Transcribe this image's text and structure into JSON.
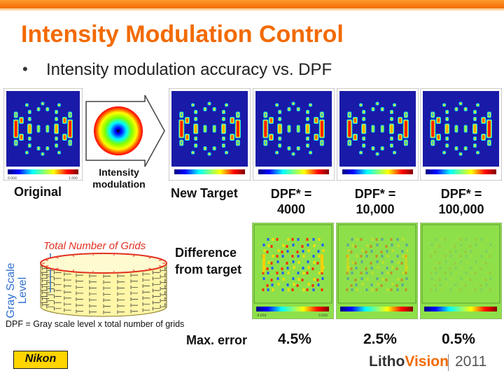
{
  "title": "Intensity Modulation Control",
  "bullet": "Intensity modulation accuracy vs. DPF",
  "labels": {
    "original": "Original",
    "intensity_modulation_line1": "Intensity",
    "intensity_modulation_line2": "modulation",
    "new_target": "New Target",
    "dpf_4000_line1": "DPF* =",
    "dpf_4000_line2": "4000",
    "dpf_10000_line1": "DPF* =",
    "dpf_10000_line2": "10,000",
    "dpf_100000_line1": "DPF* =",
    "dpf_100000_line2": "100,000",
    "difference_line1": "Difference",
    "difference_line2": "from target",
    "max_error": "Max. error"
  },
  "max_errors": [
    "4.5%",
    "2.5%",
    "0.5%"
  ],
  "grid_diagram": {
    "title": "Total Number of Grids",
    "gray_scale_line1": "Gray Scale",
    "gray_scale_line2": "Level"
  },
  "footnote": "DPF = Gray scale level x total number of grids",
  "colorbar_ticks": {
    "target_min": "0.000",
    "target_max": "1.000",
    "diff_min": "-0.050",
    "diff_max": "0.050"
  },
  "footer": {
    "logo": "Nikon",
    "brand_litho": "Litho",
    "brand_vision": "Vision",
    "year": "2011"
  },
  "colors": {
    "accent": "#f26a00",
    "panel_background": "#1a1aa8",
    "difference_background": "#8ee04a",
    "gray_label": "#2f6fd0",
    "grid_title": "#e03020",
    "logo_yellow": "#ffd400"
  }
}
